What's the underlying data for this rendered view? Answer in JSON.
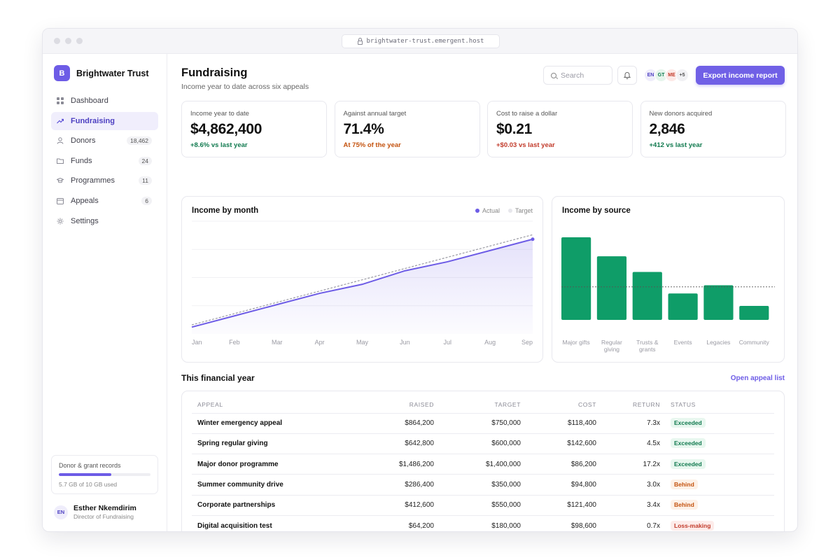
{
  "browser": {
    "url": "brightwater-trust.emergent.host"
  },
  "brand": {
    "initial": "B",
    "name": "Brightwater Trust"
  },
  "sidebar": {
    "items": [
      {
        "label": "Dashboard",
        "icon": "grid-icon",
        "badge": ""
      },
      {
        "label": "Fundraising",
        "icon": "trend-icon",
        "badge": "",
        "active": true
      },
      {
        "label": "Donors",
        "icon": "user-icon",
        "badge": "18,462"
      },
      {
        "label": "Funds",
        "icon": "folder-icon",
        "badge": "24"
      },
      {
        "label": "Programmes",
        "icon": "cap-icon",
        "badge": "11"
      },
      {
        "label": "Appeals",
        "icon": "calendar-icon",
        "badge": "6"
      },
      {
        "label": "Settings",
        "icon": "gear-icon",
        "badge": ""
      }
    ],
    "storage": {
      "title": "Donor & grant records",
      "text": "5.7 GB of 10 GB used",
      "fraction": 0.57
    },
    "user": {
      "initials": "EN",
      "name": "Esther Nkemdirim",
      "role": "Director of Fundraising"
    }
  },
  "header": {
    "title": "Fundraising",
    "subtitle": "Income year to date across six appeals",
    "search_placeholder": "Search",
    "avatars": [
      {
        "initials": "EN",
        "bg": "#efedfb",
        "fg": "#4c3fc1"
      },
      {
        "initials": "GT",
        "bg": "#e6f5ec",
        "fg": "#117a4f"
      },
      {
        "initials": "ME",
        "bg": "#fde9e7",
        "fg": "#c23b2b"
      },
      {
        "initials": "+5",
        "bg": "#f1f1f4",
        "fg": "#555555"
      }
    ],
    "export_label": "Export income report"
  },
  "kpis": [
    {
      "label": "Income year to date",
      "value": "$4,862,400",
      "delta": "+8.6% vs last year",
      "tone": "pos"
    },
    {
      "label": "Against annual target",
      "value": "71.4%",
      "delta": "At 75% of the year",
      "tone": "warn"
    },
    {
      "label": "Cost to raise a dollar",
      "value": "$0.21",
      "delta": "+$0.03 vs last year",
      "tone": "neg"
    },
    {
      "label": "New donors acquired",
      "value": "2,846",
      "delta": "+412 vs last year",
      "tone": "pos"
    }
  ],
  "chart_data": [
    {
      "type": "line",
      "title": "Income by month",
      "categories": [
        "Jan",
        "Feb",
        "Mar",
        "Apr",
        "May",
        "Jun",
        "Jul",
        "Aug",
        "Sep"
      ],
      "series": [
        {
          "name": "Actual",
          "color": "#6d5ce6",
          "values": [
            0.3,
            0.8,
            1.3,
            1.8,
            2.2,
            2.8,
            3.2,
            3.7,
            4.2
          ]
        },
        {
          "name": "Target",
          "color": "#9a9aa3",
          "values": [
            0.4,
            0.9,
            1.4,
            1.9,
            2.4,
            2.9,
            3.4,
            3.9,
            4.4
          ]
        }
      ],
      "ylim": [
        0,
        5
      ],
      "legend": "top-right",
      "grid": true
    },
    {
      "type": "bar",
      "title": "Income by source",
      "categories": [
        "Major gifts",
        "Regular giving",
        "Trusts & grants",
        "Events",
        "Legacies",
        "Community"
      ],
      "values": [
        100,
        77,
        58,
        32,
        42,
        17
      ],
      "reference_line": 40,
      "ylim": [
        0,
        100
      ],
      "color": "#0f9d68"
    }
  ],
  "table": {
    "section_title": "This financial year",
    "link_label": "Open appeal list",
    "columns": [
      "APPEAL",
      "RAISED",
      "TARGET",
      "COST",
      "RETURN",
      "STATUS"
    ],
    "rows": [
      {
        "appeal": "Winter emergency appeal",
        "raised": "$864,200",
        "target": "$750,000",
        "cost": "$118,400",
        "ret": "7.3x",
        "status": "Exceeded",
        "tone": "ex"
      },
      {
        "appeal": "Spring regular giving",
        "raised": "$642,800",
        "target": "$600,000",
        "cost": "$142,600",
        "ret": "4.5x",
        "status": "Exceeded",
        "tone": "ex"
      },
      {
        "appeal": "Major donor programme",
        "raised": "$1,486,200",
        "target": "$1,400,000",
        "cost": "$86,200",
        "ret": "17.2x",
        "status": "Exceeded",
        "tone": "ex"
      },
      {
        "appeal": "Summer community drive",
        "raised": "$286,400",
        "target": "$350,000",
        "cost": "$94,800",
        "ret": "3.0x",
        "status": "Behind",
        "tone": "be"
      },
      {
        "appeal": "Corporate partnerships",
        "raised": "$412,600",
        "target": "$550,000",
        "cost": "$121,400",
        "ret": "3.4x",
        "status": "Behind",
        "tone": "be"
      },
      {
        "appeal": "Digital acquisition test",
        "raised": "$64,200",
        "target": "$180,000",
        "cost": "$98,600",
        "ret": "0.7x",
        "status": "Loss-making",
        "tone": "lo"
      }
    ]
  }
}
